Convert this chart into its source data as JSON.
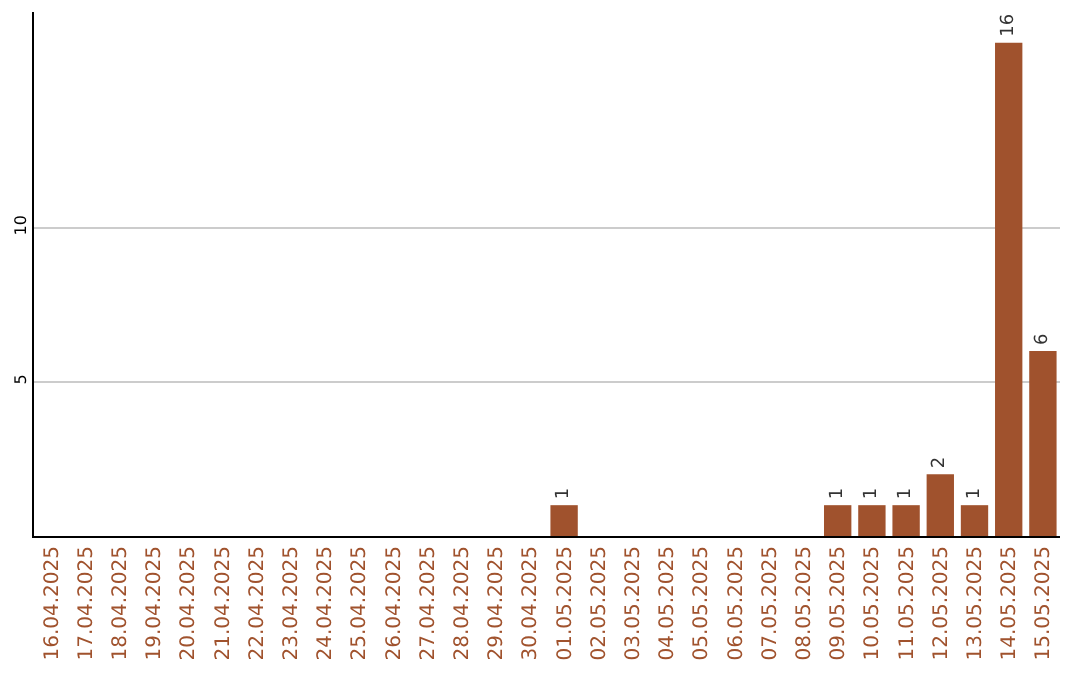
{
  "chart_data": {
    "type": "bar",
    "categories": [
      "16.04.2025",
      "17.04.2025",
      "18.04.2025",
      "19.04.2025",
      "20.04.2025",
      "21.04.2025",
      "22.04.2025",
      "23.04.2025",
      "24.04.2025",
      "25.04.2025",
      "26.04.2025",
      "27.04.2025",
      "28.04.2025",
      "29.04.2025",
      "30.04.2025",
      "01.05.2025",
      "02.05.2025",
      "03.05.2025",
      "04.05.2025",
      "05.05.2025",
      "06.05.2025",
      "07.05.2025",
      "08.05.2025",
      "09.05.2025",
      "10.05.2025",
      "11.05.2025",
      "12.05.2025",
      "13.05.2025",
      "14.05.2025",
      "15.05.2025"
    ],
    "values": [
      0,
      0,
      0,
      0,
      0,
      0,
      0,
      0,
      0,
      0,
      0,
      0,
      0,
      0,
      0,
      1,
      0,
      0,
      0,
      0,
      0,
      0,
      0,
      1,
      1,
      1,
      2,
      1,
      16,
      6
    ],
    "value_labels": [
      null,
      null,
      null,
      null,
      null,
      null,
      null,
      null,
      null,
      null,
      null,
      null,
      null,
      null,
      null,
      "1",
      null,
      null,
      null,
      null,
      null,
      null,
      null,
      "1",
      "1",
      "1",
      "2",
      "1",
      "16",
      "6"
    ],
    "color": "#a0522d",
    "ylim": [
      0,
      17
    ],
    "yticks": [
      5,
      10
    ],
    "grid": "y",
    "legend": false
  }
}
